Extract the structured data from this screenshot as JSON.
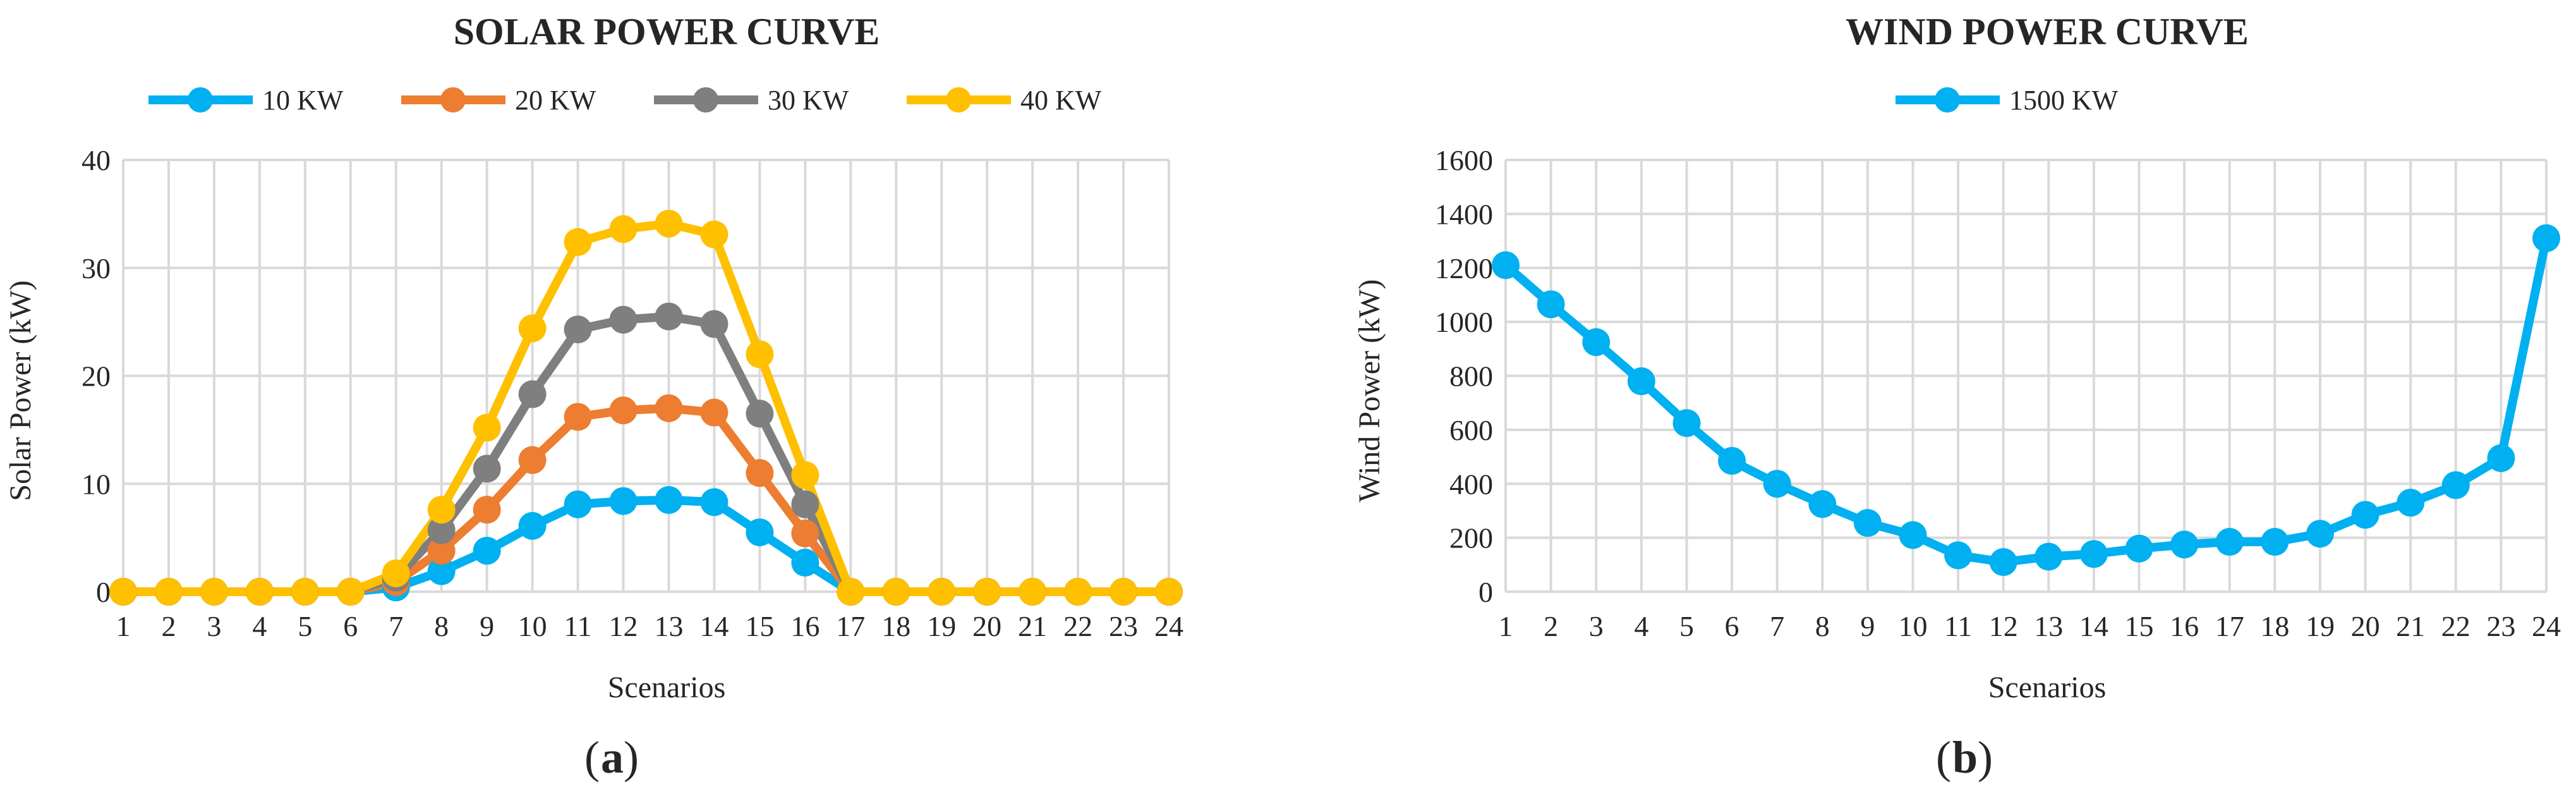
{
  "chart_data": [
    {
      "type": "line",
      "title": "SOLAR POWER CURVE",
      "xlabel": "Scenarios",
      "ylabel": "Solar Power (kW)",
      "panel_label": "a",
      "categories": [
        "1",
        "2",
        "3",
        "4",
        "5",
        "6",
        "7",
        "8",
        "9",
        "10",
        "11",
        "12",
        "13",
        "14",
        "15",
        "16",
        "17",
        "18",
        "19",
        "20",
        "21",
        "22",
        "23",
        "24"
      ],
      "ylim": [
        0,
        40
      ],
      "yticks": [
        0,
        10,
        20,
        30,
        40
      ],
      "grid": true,
      "legend": "top",
      "series": [
        {
          "name": "10 KW",
          "color": "#00B0F0",
          "values": [
            0,
            0,
            0,
            0,
            0,
            0,
            0.4,
            1.9,
            3.8,
            6.1,
            8.1,
            8.4,
            8.5,
            8.3,
            5.5,
            2.7,
            0,
            0,
            0,
            0,
            0,
            0,
            0,
            0
          ]
        },
        {
          "name": "20 KW",
          "color": "#ED7D31",
          "values": [
            0,
            0,
            0,
            0,
            0,
            0,
            0.9,
            3.8,
            7.6,
            12.2,
            16.2,
            16.8,
            17.0,
            16.6,
            11.0,
            5.4,
            0,
            0,
            0,
            0,
            0,
            0,
            0,
            0
          ]
        },
        {
          "name": "30 KW",
          "color": "#7F7F7F",
          "values": [
            0,
            0,
            0,
            0,
            0,
            0,
            1.3,
            5.7,
            11.4,
            18.3,
            24.3,
            25.2,
            25.5,
            24.8,
            16.5,
            8.1,
            0,
            0,
            0,
            0,
            0,
            0,
            0,
            0
          ]
        },
        {
          "name": "40 KW",
          "color": "#FFC000",
          "values": [
            0,
            0,
            0,
            0,
            0,
            0,
            1.7,
            7.6,
            15.2,
            24.4,
            32.4,
            33.6,
            34.1,
            33.1,
            22.0,
            10.8,
            0,
            0,
            0,
            0,
            0,
            0,
            0,
            0
          ]
        }
      ]
    },
    {
      "type": "line",
      "title": "WIND POWER CURVE",
      "xlabel": "Scenarios",
      "ylabel": "Wind  Power (kW)",
      "panel_label": "b",
      "categories": [
        "1",
        "2",
        "3",
        "4",
        "5",
        "6",
        "7",
        "8",
        "9",
        "10",
        "11",
        "12",
        "13",
        "14",
        "15",
        "16",
        "17",
        "18",
        "19",
        "20",
        "21",
        "22",
        "23",
        "24"
      ],
      "ylim": [
        0,
        1600
      ],
      "yticks": [
        0,
        200,
        400,
        600,
        800,
        1000,
        1200,
        1400,
        1600
      ],
      "grid": true,
      "legend": "top",
      "series": [
        {
          "name": "1500 KW",
          "color": "#00B0F0",
          "values": [
            1210,
            1065,
            925,
            780,
            625,
            485,
            400,
            325,
            255,
            210,
            135,
            110,
            130,
            140,
            160,
            175,
            185,
            185,
            215,
            285,
            330,
            395,
            495,
            1310
          ]
        }
      ]
    }
  ]
}
